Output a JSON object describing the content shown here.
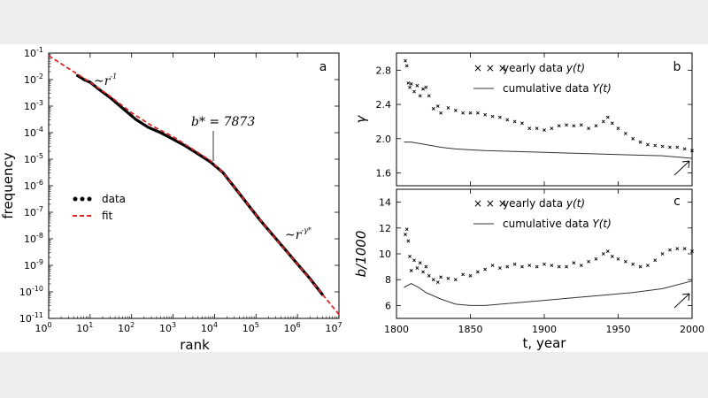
{
  "chart_data": [
    {
      "id": "a",
      "type": "line",
      "panel_label": "a",
      "xlabel": "rank",
      "ylabel": "frequency",
      "xscale": "log",
      "yscale": "log",
      "xlim_exp": [
        0,
        7
      ],
      "ylim_exp": [
        -11,
        -1
      ],
      "x_ticks": [
        {
          "base": "10",
          "exp": "0",
          "v": 0
        },
        {
          "base": "10",
          "exp": "1",
          "v": 1
        },
        {
          "base": "10",
          "exp": "2",
          "v": 2
        },
        {
          "base": "10",
          "exp": "3",
          "v": 3
        },
        {
          "base": "10",
          "exp": "4",
          "v": 4
        },
        {
          "base": "10",
          "exp": "5",
          "v": 5
        },
        {
          "base": "10",
          "exp": "6",
          "v": 6
        },
        {
          "base": "10",
          "exp": "7",
          "v": 7
        }
      ],
      "y_ticks": [
        {
          "base": "10",
          "exp": "-1",
          "v": -1
        },
        {
          "base": "10",
          "exp": "-2",
          "v": -2
        },
        {
          "base": "10",
          "exp": "-3",
          "v": -3
        },
        {
          "base": "10",
          "exp": "-4",
          "v": -4
        },
        {
          "base": "10",
          "exp": "-5",
          "v": -5
        },
        {
          "base": "10",
          "exp": "-6",
          "v": -6
        },
        {
          "base": "10",
          "exp": "-7",
          "v": -7
        },
        {
          "base": "10",
          "exp": "-8",
          "v": -8
        },
        {
          "base": "10",
          "exp": "-9",
          "v": -9
        },
        {
          "base": "10",
          "exp": "-10",
          "v": -10
        },
        {
          "base": "10",
          "exp": "-11",
          "v": -11
        }
      ],
      "series": [
        {
          "name": "data",
          "style": "dots",
          "color": "#000000",
          "log10_points": [
            [
              0.7,
              -1.85
            ],
            [
              0.85,
              -2.0
            ],
            [
              1.0,
              -2.1
            ],
            [
              1.2,
              -2.35
            ],
            [
              1.5,
              -2.7
            ],
            [
              1.8,
              -3.1
            ],
            [
              2.1,
              -3.5
            ],
            [
              2.4,
              -3.8
            ],
            [
              2.7,
              -4.0
            ],
            [
              3.0,
              -4.25
            ],
            [
              3.3,
              -4.5
            ],
            [
              3.6,
              -4.8
            ],
            [
              3.9,
              -5.1
            ],
            [
              4.2,
              -5.5
            ],
            [
              4.5,
              -6.1
            ],
            [
              4.8,
              -6.7
            ],
            [
              5.1,
              -7.3
            ],
            [
              5.4,
              -7.85
            ],
            [
              5.7,
              -8.4
            ],
            [
              6.0,
              -8.95
            ],
            [
              6.3,
              -9.5
            ],
            [
              6.6,
              -10.1
            ]
          ]
        },
        {
          "name": "fit",
          "style": "dashed",
          "color": "#d62728",
          "log10_points": [
            [
              0.0,
              -1.1
            ],
            [
              0.5,
              -1.6
            ],
            [
              1.0,
              -2.1
            ],
            [
              1.5,
              -2.65
            ],
            [
              2.0,
              -3.25
            ],
            [
              2.5,
              -3.75
            ],
            [
              3.0,
              -4.15
            ],
            [
              3.5,
              -4.65
            ],
            [
              3.9,
              -5.05
            ],
            [
              4.2,
              -5.5
            ],
            [
              4.5,
              -6.1
            ],
            [
              5.0,
              -7.1
            ],
            [
              5.5,
              -8.05
            ],
            [
              6.0,
              -8.95
            ],
            [
              6.5,
              -9.9
            ],
            [
              7.0,
              -10.85
            ]
          ]
        }
      ],
      "legend": [
        {
          "label": "data"
        },
        {
          "label": "fit"
        }
      ],
      "legend_loc": "center-left",
      "annotations": [
        {
          "text_main": "~r",
          "text_sup": "-1"
        },
        {
          "text_main": "b* = 7873",
          "at_log10": [
            3.9,
            -5.05
          ]
        },
        {
          "text_main": "~r",
          "text_sup": "-γ*"
        }
      ]
    },
    {
      "id": "b",
      "type": "scatter",
      "panel_label": "b",
      "ylabel": "γ",
      "xlim": [
        1800,
        2000
      ],
      "ylim": [
        1.45,
        3.0
      ],
      "y_ticks": [
        "1.6",
        "2.0",
        "2.4",
        "2.8"
      ],
      "series": [
        {
          "name": "yearly data y(t)",
          "style": "x-markers",
          "color": "#000000",
          "points": [
            [
              1806,
              2.91
            ],
            [
              1807,
              2.85
            ],
            [
              1808,
              2.65
            ],
            [
              1809,
              2.6
            ],
            [
              1810,
              2.64
            ],
            [
              1812,
              2.55
            ],
            [
              1814,
              2.62
            ],
            [
              1816,
              2.5
            ],
            [
              1818,
              2.58
            ],
            [
              1820,
              2.6
            ],
            [
              1822,
              2.5
            ],
            [
              1825,
              2.35
            ],
            [
              1828,
              2.38
            ],
            [
              1830,
              2.3
            ],
            [
              1835,
              2.36
            ],
            [
              1840,
              2.33
            ],
            [
              1845,
              2.3
            ],
            [
              1850,
              2.3
            ],
            [
              1855,
              2.3
            ],
            [
              1860,
              2.28
            ],
            [
              1865,
              2.26
            ],
            [
              1870,
              2.25
            ],
            [
              1875,
              2.22
            ],
            [
              1880,
              2.2
            ],
            [
              1885,
              2.18
            ],
            [
              1890,
              2.12
            ],
            [
              1895,
              2.12
            ],
            [
              1900,
              2.1
            ],
            [
              1905,
              2.12
            ],
            [
              1910,
              2.15
            ],
            [
              1915,
              2.16
            ],
            [
              1920,
              2.15
            ],
            [
              1925,
              2.16
            ],
            [
              1930,
              2.12
            ],
            [
              1935,
              2.15
            ],
            [
              1940,
              2.2
            ],
            [
              1943,
              2.25
            ],
            [
              1946,
              2.18
            ],
            [
              1950,
              2.12
            ],
            [
              1955,
              2.06
            ],
            [
              1960,
              2.0
            ],
            [
              1965,
              1.96
            ],
            [
              1970,
              1.93
            ],
            [
              1975,
              1.92
            ],
            [
              1980,
              1.91
            ],
            [
              1985,
              1.9
            ],
            [
              1990,
              1.9
            ],
            [
              1995,
              1.88
            ],
            [
              2000,
              1.86
            ]
          ]
        },
        {
          "name": "cumulative data Y(t)",
          "style": "line",
          "color": "#333333",
          "points": [
            [
              1805,
              1.96
            ],
            [
              1810,
              1.96
            ],
            [
              1820,
              1.93
            ],
            [
              1830,
              1.9
            ],
            [
              1840,
              1.88
            ],
            [
              1850,
              1.87
            ],
            [
              1860,
              1.86
            ],
            [
              1880,
              1.85
            ],
            [
              1900,
              1.84
            ],
            [
              1920,
              1.83
            ],
            [
              1940,
              1.82
            ],
            [
              1960,
              1.81
            ],
            [
              1980,
              1.8
            ],
            [
              2000,
              1.77
            ]
          ]
        }
      ],
      "legend": [
        {
          "label": "yearly data ",
          "italic": "y(t)"
        },
        {
          "label": "cumulative data ",
          "italic": "Y(t)"
        }
      ]
    },
    {
      "id": "c",
      "type": "scatter",
      "panel_label": "c",
      "ylabel": "b/1000",
      "xlabel": "t, year",
      "xlim": [
        1800,
        2000
      ],
      "ylim": [
        5.0,
        15.0
      ],
      "x_ticks": [
        "1800",
        "1850",
        "1900",
        "1950",
        "2000"
      ],
      "y_ticks": [
        "6",
        "8",
        "10",
        "12",
        "14"
      ],
      "series": [
        {
          "name": "yearly data y(t)",
          "style": "x-markers",
          "color": "#000000",
          "points": [
            [
              1806,
              11.5
            ],
            [
              1807,
              11.9
            ],
            [
              1808,
              11.0
            ],
            [
              1809,
              9.8
            ],
            [
              1810,
              8.7
            ],
            [
              1812,
              9.5
            ],
            [
              1814,
              8.9
            ],
            [
              1816,
              9.3
            ],
            [
              1818,
              8.6
            ],
            [
              1820,
              9.0
            ],
            [
              1822,
              8.3
            ],
            [
              1825,
              8.0
            ],
            [
              1828,
              7.8
            ],
            [
              1830,
              8.2
            ],
            [
              1835,
              8.1
            ],
            [
              1840,
              8.0
            ],
            [
              1845,
              8.4
            ],
            [
              1850,
              8.3
            ],
            [
              1855,
              8.6
            ],
            [
              1860,
              8.8
            ],
            [
              1865,
              9.1
            ],
            [
              1870,
              8.9
            ],
            [
              1875,
              9.0
            ],
            [
              1880,
              9.2
            ],
            [
              1885,
              9.0
            ],
            [
              1890,
              9.1
            ],
            [
              1895,
              9.0
            ],
            [
              1900,
              9.2
            ],
            [
              1905,
              9.1
            ],
            [
              1910,
              9.0
            ],
            [
              1915,
              9.0
            ],
            [
              1920,
              9.3
            ],
            [
              1925,
              9.1
            ],
            [
              1930,
              9.4
            ],
            [
              1935,
              9.6
            ],
            [
              1940,
              10.0
            ],
            [
              1943,
              10.2
            ],
            [
              1946,
              9.8
            ],
            [
              1950,
              9.6
            ],
            [
              1955,
              9.4
            ],
            [
              1960,
              9.2
            ],
            [
              1965,
              9.0
            ],
            [
              1970,
              9.1
            ],
            [
              1975,
              9.5
            ],
            [
              1980,
              10.0
            ],
            [
              1985,
              10.3
            ],
            [
              1990,
              10.4
            ],
            [
              1995,
              10.4
            ],
            [
              2000,
              10.2
            ]
          ]
        },
        {
          "name": "cumulative data Y(t)",
          "style": "line",
          "color": "#333333",
          "points": [
            [
              1805,
              7.4
            ],
            [
              1810,
              7.7
            ],
            [
              1815,
              7.4
            ],
            [
              1820,
              7.0
            ],
            [
              1830,
              6.5
            ],
            [
              1840,
              6.1
            ],
            [
              1850,
              6.0
            ],
            [
              1860,
              6.0
            ],
            [
              1880,
              6.2
            ],
            [
              1900,
              6.4
            ],
            [
              1920,
              6.6
            ],
            [
              1940,
              6.8
            ],
            [
              1960,
              7.0
            ],
            [
              1980,
              7.3
            ],
            [
              2000,
              7.9
            ]
          ]
        }
      ],
      "legend": [
        {
          "label": "yearly data ",
          "italic": "y(t)"
        },
        {
          "label": "cumulative data ",
          "italic": "Y(t)"
        }
      ]
    }
  ]
}
